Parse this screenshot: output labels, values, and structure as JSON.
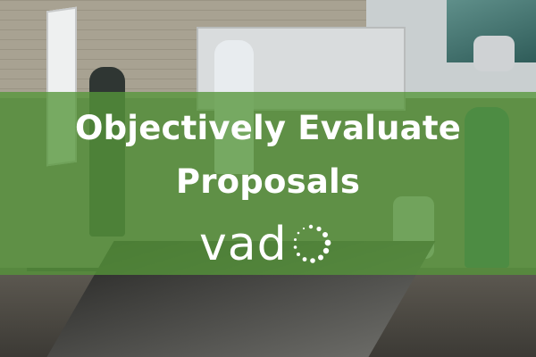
{
  "banner": {
    "headline_line1": "Objectively Evaluate",
    "headline_line2": "Proposals",
    "overlay_color": "#56963a"
  },
  "logo": {
    "text": "vad",
    "mark_icon": "dotted-circle-icon"
  },
  "photo": {
    "icon": "office-meeting-photo"
  }
}
